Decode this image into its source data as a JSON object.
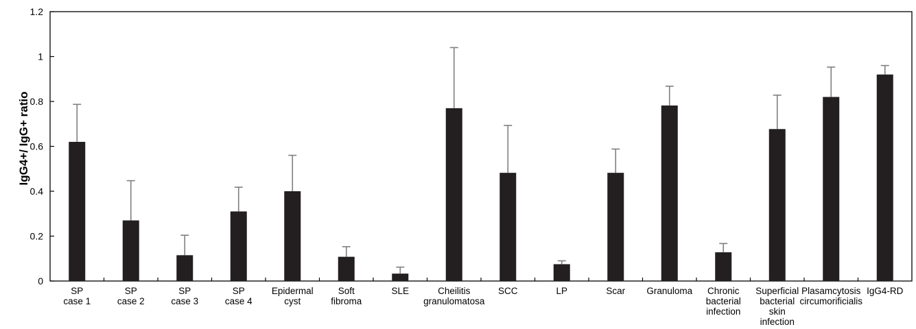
{
  "chart_data": {
    "type": "bar",
    "title": "",
    "xlabel": "",
    "ylabel": "IgG4+/ IgG+ ratio",
    "ylim": [
      0,
      1.2
    ],
    "yticks": [
      "0",
      "0.2",
      "0.4",
      "0.6",
      "0.8",
      "1",
      "1.2"
    ],
    "grid": false,
    "legend": "none",
    "categories": [
      "SP case 1",
      "SP case 2",
      "SP case 3",
      "SP case 4",
      "Epidermal cyst",
      "Soft fibroma",
      "SLE",
      "Cheilitis granulomatosa",
      "SCC",
      "LP",
      "Scar",
      "Granuloma",
      "Chronic bacterial infection",
      "Superficial bacterial skin infection",
      "Plasamcytosis circumorificialis",
      "IgG4-RD"
    ],
    "category_label_lines": [
      [
        "SP",
        "case 1"
      ],
      [
        "SP",
        "case 2"
      ],
      [
        "SP",
        "case 3"
      ],
      [
        "SP",
        "case 4"
      ],
      [
        "Epidermal",
        "cyst"
      ],
      [
        "Soft",
        "fibroma"
      ],
      [
        "SLE"
      ],
      [
        "Cheilitis",
        "granulomatosa"
      ],
      [
        "SCC"
      ],
      [
        "LP"
      ],
      [
        "Scar"
      ],
      [
        "Granuloma"
      ],
      [
        "Chronic",
        "bacterial",
        "infection"
      ],
      [
        "Superficial",
        "bacterial",
        "skin",
        "infection"
      ],
      [
        "Plasamcytosis",
        "circumorificialis"
      ],
      [
        "IgG4-RD"
      ]
    ],
    "values": [
      0.62,
      0.27,
      0.115,
      0.31,
      0.4,
      0.108,
      0.033,
      0.77,
      0.482,
      0.075,
      0.482,
      0.782,
      0.128,
      0.677,
      0.82,
      0.92
    ],
    "error_upper": [
      0.787,
      0.447,
      0.204,
      0.418,
      0.56,
      0.153,
      0.062,
      1.04,
      0.693,
      0.09,
      0.588,
      0.868,
      0.167,
      0.828,
      0.953,
      0.96
    ],
    "colors": {
      "bar": "#231f20",
      "error_bar": "#7f7f7f",
      "axis": "#000000"
    }
  }
}
